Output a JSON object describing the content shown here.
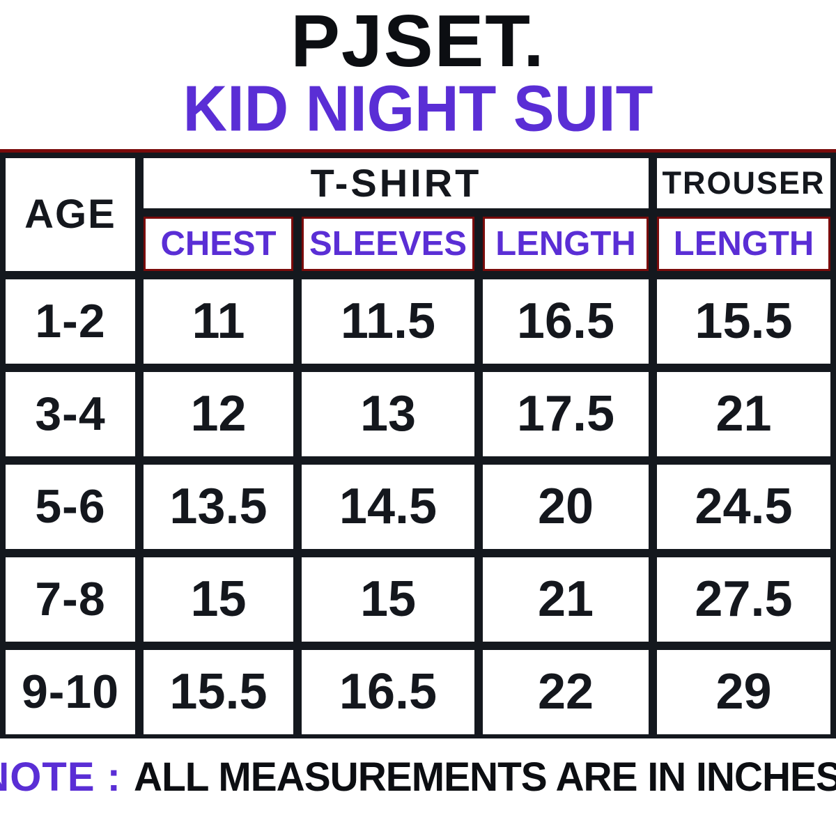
{
  "title": {
    "brand": "PJSET.",
    "subtitle": "KID NIGHT SUIT"
  },
  "colors": {
    "accent_purple": "#5a2ed5",
    "ink_black": "#14171d",
    "grid_black": "#14181e",
    "maroon_border": "#7a0b0b",
    "background": "#ffffff"
  },
  "table": {
    "age_header": "AGE",
    "group_headers": {
      "tshirt": "T-SHIRT",
      "trouser": "TROUSER"
    },
    "sub_headers": {
      "chest": "CHEST",
      "sleeves": "SLEEVES",
      "length": "LENGTH",
      "trouser_length": "LENGTH"
    },
    "rows": [
      {
        "age": "1-2",
        "chest": "11",
        "sleeves": "11.5",
        "length": "16.5",
        "trouser_length": "15.5"
      },
      {
        "age": "3-4",
        "chest": "12",
        "sleeves": "13",
        "length": "17.5",
        "trouser_length": "21"
      },
      {
        "age": "5-6",
        "chest": "13.5",
        "sleeves": "14.5",
        "length": "20",
        "trouser_length": "24.5"
      },
      {
        "age": "7-8",
        "chest": "15",
        "sleeves": "15",
        "length": "21",
        "trouser_length": "27.5"
      },
      {
        "age": "9-10",
        "chest": "15.5",
        "sleeves": "16.5",
        "length": "22",
        "trouser_length": "29"
      }
    ]
  },
  "note": {
    "label": "NOTE :",
    "text": "ALL MEASUREMENTS ARE IN INCHES"
  },
  "chart_data": {
    "type": "table",
    "title": "PJSET. KID NIGHT SUIT",
    "columns": [
      "AGE",
      "T-SHIRT CHEST",
      "T-SHIRT SLEEVES",
      "T-SHIRT LENGTH",
      "TROUSER LENGTH"
    ],
    "rows": [
      [
        "1-2",
        11,
        11.5,
        16.5,
        15.5
      ],
      [
        "3-4",
        12,
        13,
        17.5,
        21
      ],
      [
        "5-6",
        13.5,
        14.5,
        20,
        24.5
      ],
      [
        "7-8",
        15,
        15,
        21,
        27.5
      ],
      [
        "9-10",
        15.5,
        16.5,
        22,
        29
      ]
    ],
    "units": "inches",
    "note": "ALL MEASUREMENTS ARE IN INCHES"
  }
}
